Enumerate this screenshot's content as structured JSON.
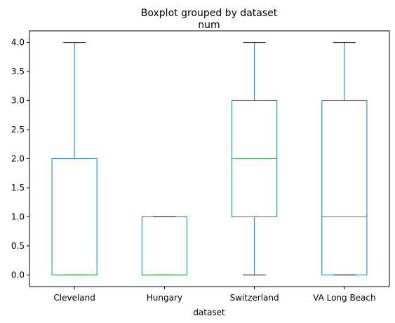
{
  "chart_data": {
    "type": "boxplot",
    "suptitle": "Boxplot grouped by dataset",
    "title": "num",
    "xlabel": "dataset",
    "ylabel": "",
    "ylim": [
      -0.2,
      4.2
    ],
    "yticks": [
      0.0,
      0.5,
      1.0,
      1.5,
      2.0,
      2.5,
      3.0,
      3.5,
      4.0
    ],
    "ytick_labels": [
      "0.0",
      "0.5",
      "1.0",
      "1.5",
      "2.0",
      "2.5",
      "3.0",
      "3.5",
      "4.0"
    ],
    "categories": [
      "Cleveland",
      "Hungary",
      "Switzerland",
      "VA Long Beach"
    ],
    "boxes": [
      {
        "whisker_low": 0,
        "q1": 0,
        "median": 0,
        "q3": 2,
        "whisker_high": 4
      },
      {
        "whisker_low": 0,
        "q1": 0,
        "median": 0,
        "q3": 1,
        "whisker_high": 1
      },
      {
        "whisker_low": 0,
        "q1": 1,
        "median": 2,
        "q3": 3,
        "whisker_high": 4
      },
      {
        "whisker_low": 0,
        "q1": 0,
        "median": 1,
        "q3": 3,
        "whisker_high": 4
      }
    ],
    "grid": false,
    "colors": {
      "box": "#1f77b4",
      "median": "#2ca02c",
      "cap": "#000000",
      "axis": "#000000"
    }
  }
}
